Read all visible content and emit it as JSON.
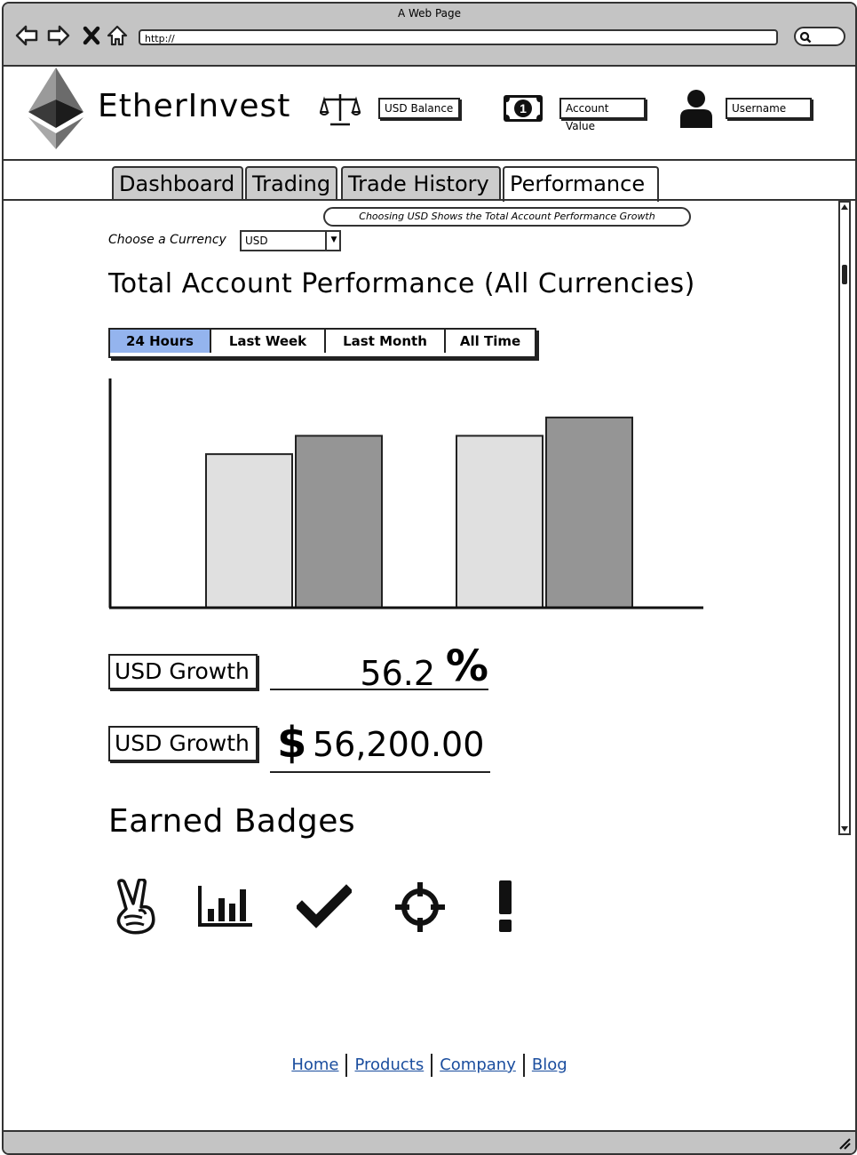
{
  "window": {
    "title": "A Web Page",
    "url": "http://"
  },
  "header": {
    "brand": "EtherInvest",
    "usd_balance": "USD Balance",
    "account_value": "Account Value",
    "username": "Username"
  },
  "tabs": [
    {
      "label": "Dashboard",
      "active": false
    },
    {
      "label": "Trading",
      "active": false
    },
    {
      "label": "Trade History",
      "active": false
    },
    {
      "label": "Performance",
      "active": true
    }
  ],
  "currency": {
    "label": "Choose a Currency",
    "selected": "USD",
    "tooltip": "Choosing USD Shows the Total Account Performance Growth"
  },
  "page_title": "Total Account Performance (All Currencies)",
  "periods": [
    {
      "label": "24 Hours",
      "selected": true
    },
    {
      "label": "Last Week",
      "selected": false
    },
    {
      "label": "Last Month",
      "selected": false
    },
    {
      "label": "All Time",
      "selected": false
    }
  ],
  "chart_data": {
    "type": "bar",
    "categories": [
      "",
      ""
    ],
    "series": [
      {
        "values": [
          67,
          75
        ],
        "color": "#e0e0e0"
      },
      {
        "values": [
          75,
          83
        ],
        "color": "#959595"
      }
    ],
    "ylim": [
      0,
      100
    ],
    "grid": false
  },
  "metrics": [
    {
      "label": "USD Growth",
      "value": "56.2",
      "unit": "%"
    },
    {
      "label": "USD Growth",
      "unit": "$",
      "value": "56,200.00"
    }
  ],
  "badges": {
    "title": "Earned Badges",
    "icons": [
      "peace-hand-icon",
      "bar-chart-icon",
      "checkmark-icon",
      "crosshair-icon",
      "exclamation-icon"
    ]
  },
  "footer": {
    "links": [
      "Home",
      "Products",
      "Company",
      "Blog"
    ]
  }
}
